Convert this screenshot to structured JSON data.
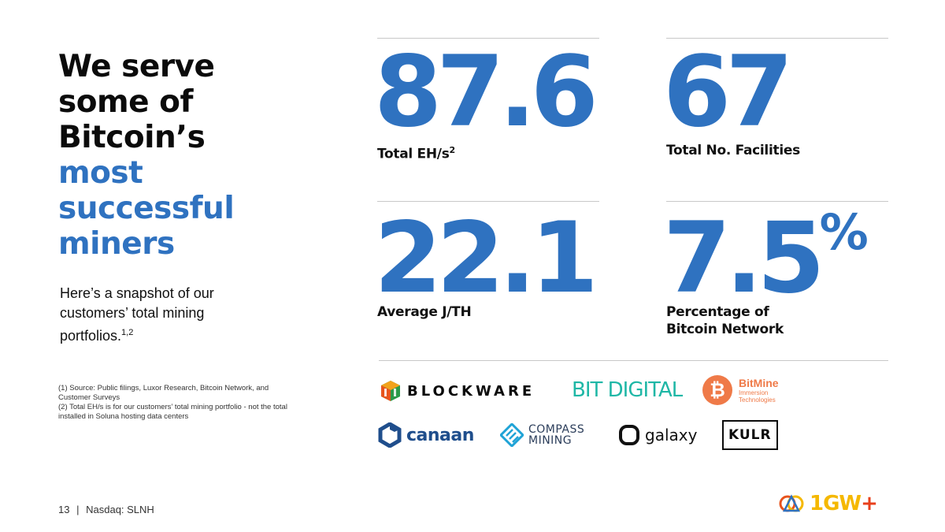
{
  "headline": {
    "line1": "We serve",
    "line2": "some of",
    "line3": "Bitcoin’s",
    "line4": "most",
    "line5": "successful",
    "line6": "miners"
  },
  "intro": {
    "text": "Here’s a snapshot of our customers’ total mining portfolios.",
    "refs": "1,2"
  },
  "footnotes": {
    "note1": "(1) Source: Public filings, Luxor Research, Bitcoin Network, and Customer Surveys",
    "note2": "(2) Total EH/s is for our customers’ total mining portfolio - not the total installed in Soluna hosting data centers"
  },
  "page_footer": {
    "page_number": "13",
    "separator": "|",
    "ticker": "Nasdaq: SLNH"
  },
  "stats": {
    "eh": {
      "value": "87.6",
      "label": "Total EH/s",
      "ref": "2"
    },
    "facilities": {
      "value": "67",
      "label": "Total No. Facilities"
    },
    "jth": {
      "value": "22.1",
      "label": "Average J/TH"
    },
    "network": {
      "value": "7.5",
      "unit": "%",
      "label_line1": "Percentage of",
      "label_line2": "Bitcoin Network"
    }
  },
  "logos": {
    "blockware": "BLOCKWARE",
    "bitdigital": "BIT DIGITAL",
    "bitmine_name": "BitMine",
    "bitmine_sub1": "Immersion",
    "bitmine_sub2": "Technologies",
    "canaan": "canaan",
    "compass_line1": "COMPASS",
    "compass_line2": "MINING",
    "galaxy": "galaxy",
    "kulr": "KULR"
  },
  "brand": {
    "text": "1GW",
    "plus": "+"
  },
  "colors": {
    "accent_blue": "#2f72c0",
    "bitdigital_teal": "#1fb7a6",
    "bitmine_orange": "#ef7a48",
    "brand_yellow": "#f5b800",
    "brand_red": "#e8401c"
  }
}
